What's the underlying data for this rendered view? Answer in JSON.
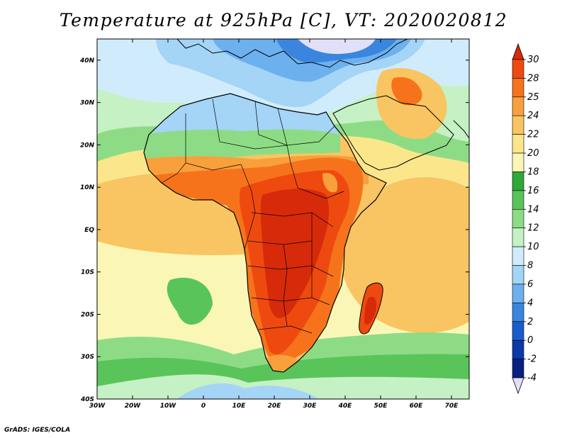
{
  "title": "Temperature at 925hPa [C], VT: 2020020812",
  "footer": "GrADS: IGES/COLA",
  "map": {
    "projection": "latlon",
    "lon_range": [
      -30,
      75
    ],
    "lat_range": [
      -40,
      45
    ],
    "lon_ticks": [
      {
        "value": -30,
        "label": "30W"
      },
      {
        "value": -20,
        "label": "20W"
      },
      {
        "value": -10,
        "label": "10W"
      },
      {
        "value": 0,
        "label": "0"
      },
      {
        "value": 10,
        "label": "10E"
      },
      {
        "value": 20,
        "label": "20E"
      },
      {
        "value": 30,
        "label": "30E"
      },
      {
        "value": 40,
        "label": "40E"
      },
      {
        "value": 50,
        "label": "50E"
      },
      {
        "value": 60,
        "label": "60E"
      },
      {
        "value": 70,
        "label": "70E"
      }
    ],
    "lat_ticks": [
      {
        "value": 40,
        "label": "40N"
      },
      {
        "value": 30,
        "label": "30N"
      },
      {
        "value": 20,
        "label": "20N"
      },
      {
        "value": 10,
        "label": "10N"
      },
      {
        "value": 0,
        "label": "EQ"
      },
      {
        "value": -10,
        "label": "10S"
      },
      {
        "value": -20,
        "label": "20S"
      },
      {
        "value": -30,
        "label": "30S"
      },
      {
        "value": -40,
        "label": "40S"
      }
    ]
  },
  "colorbar": {
    "levels": [
      "30",
      "28",
      "25",
      "24",
      "22",
      "20",
      "18",
      "16",
      "14",
      "12",
      "10",
      "8",
      "6",
      "4",
      "2",
      "0",
      "-2",
      "-4"
    ],
    "colors": [
      "#d72a0a",
      "#ee4a0f",
      "#f6731c",
      "#f8a03c",
      "#f8c562",
      "#fbe68c",
      "#faf7b6",
      "#2ea838",
      "#59c45a",
      "#8ddc85",
      "#c5f1c4",
      "#d0ecfc",
      "#a4d4f6",
      "#6cb0ee",
      "#3a86de",
      "#1a5ccc",
      "#0d38a8",
      "#082080",
      "#e2e0f8"
    ]
  }
}
